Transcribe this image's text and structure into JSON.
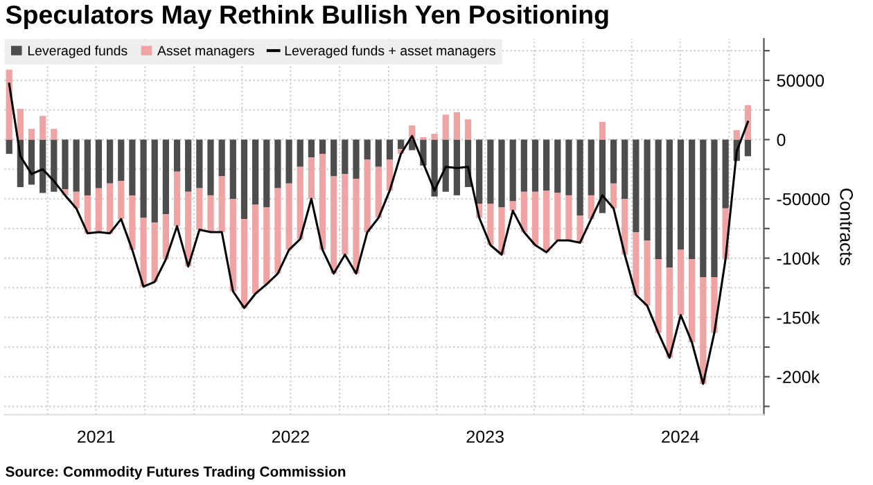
{
  "chart_data": {
    "type": "bar",
    "title": "Speculators May Rethink Bullish Yen Positioning",
    "ylabel": "Contracts",
    "annotations": [
      "Source: Commodity Futures Trading Commission"
    ],
    "stacked": true,
    "x": [
      "2021-01-19",
      "2021-02-09",
      "2021-03-02",
      "2021-03-23",
      "2021-04-13",
      "2021-05-04",
      "2021-05-25",
      "2021-06-15",
      "2021-07-06",
      "2021-07-27",
      "2021-08-17",
      "2021-09-07",
      "2021-09-28",
      "2021-10-19",
      "2021-11-09",
      "2021-11-30",
      "2021-12-21",
      "2022-01-11",
      "2022-02-01",
      "2022-02-22",
      "2022-03-15",
      "2022-04-05",
      "2022-04-26",
      "2022-05-17",
      "2022-06-07",
      "2022-06-28",
      "2022-07-19",
      "2022-08-09",
      "2022-08-30",
      "2022-09-20",
      "2022-10-11",
      "2022-11-01",
      "2022-11-22",
      "2022-12-13",
      "2023-01-03",
      "2023-01-24",
      "2023-02-14",
      "2023-03-07",
      "2023-03-28",
      "2023-04-18",
      "2023-05-09",
      "2023-05-30",
      "2023-06-20",
      "2023-07-11",
      "2023-08-01",
      "2023-08-22",
      "2023-09-12",
      "2023-10-03",
      "2023-10-24",
      "2023-11-14",
      "2023-12-05",
      "2023-12-26",
      "2024-01-16",
      "2024-02-06",
      "2024-02-27",
      "2024-03-19",
      "2024-04-09",
      "2024-04-30",
      "2024-05-21",
      "2024-06-11",
      "2024-07-02",
      "2024-07-23",
      "2024-08-13",
      "2024-09-03",
      "2024-09-24",
      "2024-10-15",
      "2024-11-05"
    ],
    "series": [
      {
        "name": "Leveraged funds",
        "color": "#4d4d4d",
        "values": [
          -12000,
          -40000,
          -38000,
          -45000,
          -44000,
          -42000,
          -44000,
          -47000,
          -41000,
          -37000,
          -35000,
          -47000,
          -66000,
          -70000,
          -63000,
          -27000,
          -44000,
          -41000,
          -47000,
          -31000,
          -50000,
          -67000,
          -55000,
          -57000,
          -41000,
          -37000,
          -23000,
          -15000,
          -12000,
          -31000,
          -29000,
          -33000,
          -17000,
          -23000,
          -17000,
          -8000,
          -9000,
          -22000,
          -48000,
          -44000,
          -47000,
          -40000,
          -54000,
          -54000,
          -57000,
          -52000,
          -44000,
          -44000,
          -43000,
          -45000,
          -47000,
          -64000,
          -47000,
          -62000,
          -37000,
          -50000,
          -78000,
          -85000,
          -101000,
          -108000,
          -93000,
          -101000,
          -116000,
          -116000,
          -58000,
          -18000,
          -14000
        ]
      },
      {
        "name": "Asset managers",
        "color": "#f0a3a3",
        "values": [
          59000,
          26000,
          9000,
          20000,
          9000,
          -5000,
          -14000,
          -32000,
          -37000,
          -42000,
          -32000,
          -46000,
          -58000,
          -50000,
          -38000,
          -46000,
          -63000,
          -35000,
          -31000,
          -47000,
          -78000,
          -75000,
          -75000,
          -65000,
          -72000,
          -56000,
          -61000,
          -35000,
          -81000,
          -82000,
          -68000,
          -80000,
          -61000,
          -43000,
          -26000,
          -4000,
          12000,
          2000,
          5000,
          21000,
          23000,
          17000,
          -12000,
          -35000,
          -40000,
          -8000,
          -34000,
          -45000,
          -52000,
          -40000,
          -38000,
          -23000,
          -20000,
          15000,
          -21000,
          -47000,
          -53000,
          -55000,
          -62000,
          -76000,
          -55000,
          -70000,
          -90000,
          -47000,
          -43000,
          8000,
          29000
        ]
      },
      {
        "name": "Leveraged funds + asset managers",
        "color": "#000000",
        "type": "line",
        "values": [
          47000,
          -14000,
          -29000,
          -25000,
          -35000,
          -47000,
          -58000,
          -79000,
          -78000,
          -79000,
          -67000,
          -93000,
          -124000,
          -120000,
          -101000,
          -73000,
          -107000,
          -76000,
          -78000,
          -78000,
          -128000,
          -142000,
          -130000,
          -122000,
          -113000,
          -93000,
          -84000,
          -50000,
          -93000,
          -113000,
          -97000,
          -113000,
          -78000,
          -66000,
          -43000,
          -12000,
          3000,
          -20000,
          -43000,
          -23000,
          -24000,
          -23000,
          -66000,
          -89000,
          -97000,
          -60000,
          -78000,
          -89000,
          -95000,
          -85000,
          -85000,
          -87000,
          -67000,
          -47000,
          -58000,
          -97000,
          -131000,
          -140000,
          -163000,
          -184000,
          -148000,
          -171000,
          -206000,
          -163000,
          -101000,
          -10000,
          15000
        ]
      }
    ],
    "xlim": [
      "2021-01-10",
      "2024-12-05"
    ],
    "xticks": [
      {
        "value": "2021-04-01",
        "label": null
      },
      {
        "value": "2021-07-01",
        "label": "2021"
      },
      {
        "value": "2021-10-01",
        "label": null
      },
      {
        "value": "2022-01-01",
        "label": null
      },
      {
        "value": "2022-04-01",
        "label": null
      },
      {
        "value": "2022-07-01",
        "label": "2022"
      },
      {
        "value": "2022-10-01",
        "label": null
      },
      {
        "value": "2023-01-01",
        "label": null
      },
      {
        "value": "2023-04-01",
        "label": null
      },
      {
        "value": "2023-07-01",
        "label": "2023"
      },
      {
        "value": "2023-10-01",
        "label": null
      },
      {
        "value": "2024-01-01",
        "label": null
      },
      {
        "value": "2024-04-01",
        "label": null
      },
      {
        "value": "2024-07-01",
        "label": "2024"
      },
      {
        "value": "2024-10-01",
        "label": null
      }
    ],
    "ylim": [
      -232000,
      85000
    ],
    "yticks": [
      {
        "value": 75000,
        "label": null
      },
      50000,
      {
        "value": 25000,
        "label": null
      },
      0,
      {
        "value": -25000,
        "label": null
      },
      -50000,
      {
        "value": -75000,
        "label": null
      },
      {
        "value": -100000,
        "label": "-100k"
      },
      {
        "value": -125000,
        "label": null
      },
      {
        "value": -150000,
        "label": "-150k"
      },
      {
        "value": -175000,
        "label": null
      },
      {
        "value": -200000,
        "label": "-200k"
      },
      {
        "value": -225000,
        "label": null
      }
    ],
    "grid": true,
    "legend": "top left"
  }
}
